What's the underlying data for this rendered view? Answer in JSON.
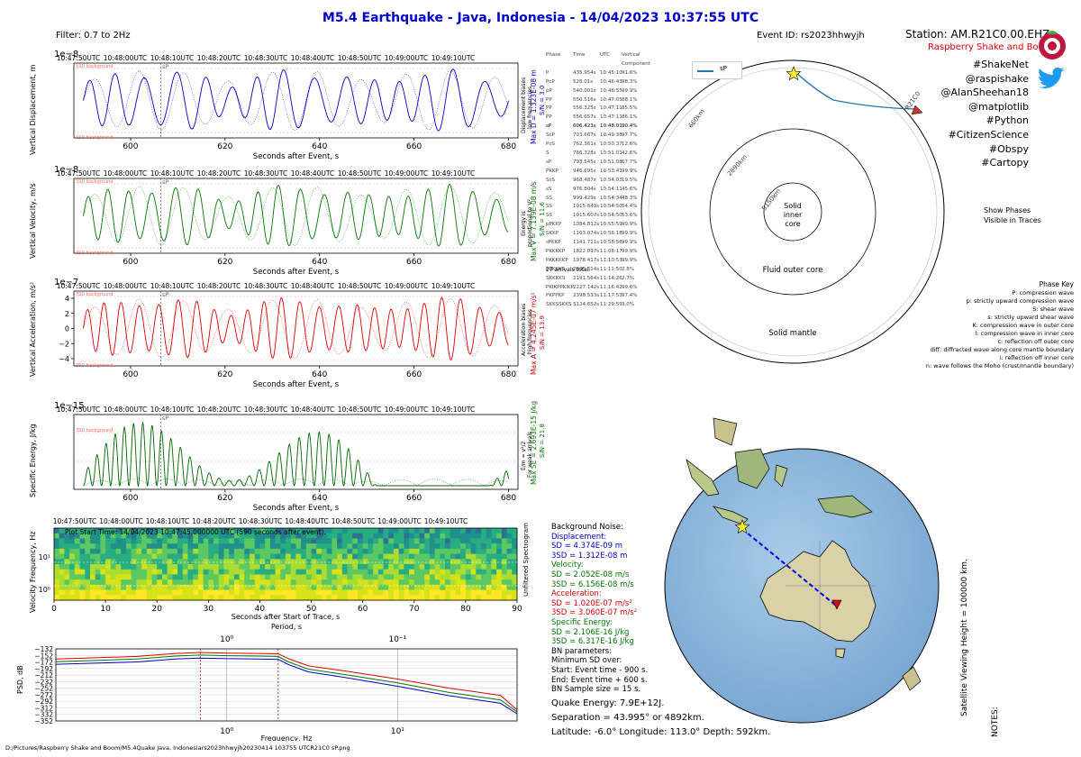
{
  "header": {
    "title": "M5.4 Earthquake - Java, Indonesia -  14/04/2023 10:37:55 UTC",
    "filter": "Filter: 0.7 to 2Hz",
    "event_id": "Event ID: rs2023hhwyjh",
    "station": "Station: AM.R21C0.00.EHZ",
    "station_sub": "Raspberry Shake and Boom"
  },
  "social": [
    "#ShakeNet",
    "@raspishake",
    "@AlanSheehan18",
    "@matplotlib",
    "#Python",
    "#CitizenScience",
    "#Obspy",
    "#Cartopy"
  ],
  "colors": {
    "title": "#0000cc",
    "disp": "#0000cc",
    "vel": "#007700",
    "acc": "#dd0000",
    "energy": "#006600",
    "sp_line": "#1f77b4",
    "noise": "#ff9999"
  },
  "time_labels": [
    "10:47:50UTC",
    "10:48:00UTC",
    "10:48:10UTC",
    "10:48:20UTC",
    "10:48:30UTC",
    "10:48:40UTC",
    "10:48:50UTC",
    "10:49:00UTC",
    "10:49:10UTC"
  ],
  "trace_axis": {
    "xlabel": "Seconds after Event, s",
    "ticks": [
      "600",
      "620",
      "640",
      "660",
      "680"
    ],
    "sp_label": "sP"
  },
  "panels": {
    "disp": {
      "exp": "1e−8",
      "ylabel": "Vertical Displacement, m",
      "right": [
        "Displacement biases",
        "low frequencies"
      ],
      "max": "Max D = 1.323E-08 m",
      "snr": "S/N = 3.0",
      "noise": "1SD background"
    },
    "vel": {
      "exp": "1e−8",
      "ylabel": "Vertical Velocity, m/s",
      "right": [
        "Energy is",
        "proportional to V²"
      ],
      "max": "Max V = 7.139E-08 m/s",
      "snr": "S/N = 11.6",
      "noise": "3SD background"
    },
    "acc": {
      "exp": "1e−7",
      "ylabel": "Vertical Acceleration, m/s²",
      "right": [
        "Acceleration biases",
        "high frequencies"
      ],
      "max": "Max A = 4.245E-07 m/s²",
      "snr": "S/N = 13.9",
      "noise": "3SD background",
      "yticks": [
        "4",
        "2",
        "0",
        "−2",
        "−4"
      ]
    },
    "energy": {
      "exp": "1e−15",
      "ylabel": "Specific Energy, J/kg",
      "right": [
        "E/m = v²/2",
        "For weak arrivals"
      ],
      "max": "Max SE = 2.693E-15 J/kg",
      "snr": "S/N = 21.8",
      "noise": "3SD background"
    }
  },
  "spectrogram": {
    "ylabel": "Velocity Frequency, Hz",
    "yticks": [
      "10¹",
      "10⁰"
    ],
    "xlabel": "Seconds after Start of Trace, s",
    "xticks": [
      "0",
      "10",
      "20",
      "30",
      "40",
      "50",
      "60",
      "70",
      "80",
      "90"
    ],
    "start_note": "Plot Start Time:  14/04/2023 10:47:45.000000 UTC (590 seconds after event).",
    "right_label": "Unfiltered Spectrogram"
  },
  "psd": {
    "ylabel": "PSD, dB",
    "xlabel": "Frequency, Hz",
    "period_label": "Period, s",
    "yticks": [
      "−132",
      "−152",
      "−172",
      "−192",
      "−212",
      "−232",
      "−252",
      "−272",
      "−292",
      "−312",
      "−332",
      "−352"
    ],
    "xticks": [
      "10⁰",
      "10¹"
    ],
    "period_ticks": [
      "10⁰",
      "10⁻¹"
    ]
  },
  "phases": {
    "header": [
      "Phase",
      "Time",
      "UTC",
      "Vertical Component"
    ],
    "rows": [
      [
        "P",
        "435.954s",
        "10:45:10",
        "91.6%"
      ],
      [
        "PcP",
        "528.01s",
        "10:46:43",
        "98.3%"
      ],
      [
        "pP",
        "540.001s",
        "10:46:55",
        "99.9%"
      ],
      [
        "PP",
        "550.516s",
        "10:47:05",
        "88.1%"
      ],
      [
        "PP",
        "556.325s",
        "10:47:11",
        "85.5%"
      ],
      [
        "PP",
        "556.657s",
        "10:47:11",
        "86.1%"
      ],
      [
        "sP",
        "606.423s",
        "10:48:01",
        "90.4%"
      ],
      [
        "ScP",
        "703.667s",
        "10:49:38",
        "97.7%"
      ],
      [
        "PcS",
        "762.361s",
        "10:50:37",
        "12.6%"
      ],
      [
        "S",
        "786.328s",
        "10:51:01",
        "42.6%"
      ],
      [
        "sP",
        "793.545s",
        "10:51:08",
        "67.7%"
      ],
      [
        "PKKP",
        "946.695s",
        "10:53:41",
        "99.9%"
      ],
      [
        "ScS",
        "968.487s",
        "10:54:03",
        "19.5%"
      ],
      [
        "sS",
        "976.804s",
        "10:54:11",
        "45.6%"
      ],
      [
        "SS",
        "999.429s",
        "10:54:34",
        "48.3%"
      ],
      [
        "SS",
        "1015.649s",
        "10:54:50",
        "54.4%"
      ],
      [
        "SS",
        "1015.607s",
        "10:54:50",
        "53.6%"
      ],
      [
        "pPKKP",
        "1084.812s",
        "10:55:59",
        "99.9%"
      ],
      [
        "SKKP",
        "1103.074s",
        "10:56:18",
        "99.9%"
      ],
      [
        "sPKKP",
        "1141.711s",
        "10:56:56",
        "99.9%"
      ],
      [
        "PKKKKP",
        "1822.097s",
        "11:08:17",
        "99.9%"
      ],
      [
        "PKKKKKP",
        "1978.417s",
        "11:10:53",
        "99.9%"
      ],
      [
        "PKKKKS",
        "2035.314s",
        "11:11:50",
        "2.8%"
      ],
      [
        "SKKKKS",
        "2191.564s",
        "11:14:26",
        "2.7%"
      ],
      [
        "PKIKPPKIKP",
        "2227.142s",
        "11:16:42",
        "99.6%"
      ],
      [
        "PKPPKP",
        "2398.533s",
        "11:17:53",
        "97.4%"
      ],
      [
        "SKKSSKKS",
        "3124.652s",
        "11:29:59",
        "3.0%"
      ]
    ],
    "total": "27 arrivals total."
  },
  "cross_section": {
    "legend": "sP",
    "station_label": "R21C0",
    "depth_labels": [
      "660km",
      "2890km",
      "5150km"
    ],
    "inner_core": [
      "Solid",
      "inner",
      "core"
    ],
    "outer_core": "Fluid outer core",
    "mantle": "Solid mantle",
    "show_phases": [
      "Show Phases",
      "Visible in Traces"
    ]
  },
  "phase_key": {
    "title": "Phase Key",
    "items": [
      "P:   compression wave",
      "p:   strictly upward compression wave",
      "S:   shear wave",
      "s:   strictly upward shear wave",
      "K:   compression wave in outer core",
      "I:   compression wave in inner core",
      "c:   reflection off outer core",
      "diff:   diffracted wave along core mantle boundary",
      "i:   reflection off inner core",
      "n:   wave follows the Moho (crust/mantle boundary)"
    ]
  },
  "background_noise": {
    "title": "Background Noise:",
    "disp_head": "Displacement:",
    "disp": [
      "SD = 4.374E-09 m",
      "3SD = 1.312E-08 m"
    ],
    "vel_head": "Velocity:",
    "vel": [
      "SD = 2.052E-08 m/s",
      "3SD = 6.156E-08 m/s"
    ],
    "acc_head": "Acceleration:",
    "acc": [
      "SD = 1.020E-07 m/s²",
      "3SD = 3.060E-07 m/s²"
    ],
    "en_head": "Specific Energy:",
    "en": [
      "SD = 2.106E-16 J/kg",
      "3SD = 6.317E-16 J/kg"
    ],
    "params": [
      "BN parameters:",
      "Minimum SD over:",
      "Start: Event time - 900 s.",
      "End: Event time + 600 s.",
      "BN Sample size = 15 s."
    ]
  },
  "quake": {
    "energy": "Quake Energy: 7.9E+12J.",
    "separation": "Separation = 43.995° or 4892km.",
    "location": "Latitude: -6.0° Longitude: 113.0° Depth: 592km."
  },
  "globe": {
    "height_label": "Satellite Viewing Height = 100000 km.",
    "notes": "NOTES:"
  },
  "footer": "D:/Pictures/Raspberry Shake and Boom/M5.4Quake Java, Indonesiars2023hhwyjh20230414 103755 UTCR21C0 sP.png",
  "chart_data": [
    {
      "type": "line",
      "title": "Vertical Displacement",
      "xlabel": "Seconds after Event, s",
      "ylabel": "Vertical Displacement, m",
      "xlim": [
        588,
        682
      ],
      "ylim": [
        -1.4e-08,
        1.4e-08
      ],
      "series": [
        {
          "name": "Displacement",
          "x": [
            590,
            606.4,
            680
          ],
          "values": [
            0,
            1.323e-08,
            0
          ]
        }
      ],
      "annotations": [
        "sP at 606.4 s"
      ]
    },
    {
      "type": "line",
      "title": "Vertical Velocity",
      "xlabel": "Seconds after Event, s",
      "ylabel": "Vertical Velocity, m/s",
      "xlim": [
        588,
        682
      ],
      "ylim": [
        -8e-08,
        8e-08
      ],
      "series": [
        {
          "name": "Velocity",
          "x": [
            590,
            606.4,
            680
          ],
          "values": [
            0,
            7.139e-08,
            0
          ]
        }
      ]
    },
    {
      "type": "line",
      "title": "Vertical Acceleration",
      "xlabel": "Seconds after Event, s",
      "ylabel": "Vertical Acceleration, m/s²",
      "xlim": [
        588,
        682
      ],
      "ylim": [
        -4.5e-07,
        4.5e-07
      ],
      "series": [
        {
          "name": "Acceleration",
          "x": [
            590,
            606.4,
            680
          ],
          "values": [
            0,
            4.245e-07,
            0
          ]
        }
      ]
    },
    {
      "type": "line",
      "title": "Specific Energy",
      "xlabel": "Seconds after Event, s",
      "ylabel": "Specific Energy, J/kg",
      "xlim": [
        588,
        682
      ],
      "ylim": [
        0,
        3e-15
      ],
      "series": [
        {
          "name": "Energy",
          "x": [
            590,
            606.4,
            680
          ],
          "values": [
            0,
            2.693e-15,
            0
          ]
        }
      ]
    },
    {
      "type": "heatmap",
      "title": "Unfiltered Spectrogram",
      "xlabel": "Seconds after Start of Trace, s",
      "ylabel": "Velocity Frequency, Hz",
      "xlim": [
        0,
        90
      ],
      "ylim_log": [
        0.5,
        25
      ]
    },
    {
      "type": "line",
      "title": "PSD",
      "xlabel": "Frequency, Hz",
      "ylabel": "PSD, dB",
      "xlim_log": [
        0.1,
        50
      ],
      "ylim": [
        -352,
        -132
      ],
      "x": [
        0.1,
        0.3,
        0.5,
        0.7,
        1.0,
        1.5,
        2.0,
        2.3,
        3,
        5,
        10,
        20,
        40,
        50
      ],
      "series": [
        {
          "name": "Displacement",
          "color": "#0000cc",
          "values": [
            -179,
            -172,
            -163,
            -160,
            -162,
            -163,
            -164,
            -180,
            -202,
            -220,
            -246,
            -275,
            -298,
            -330
          ]
        },
        {
          "name": "Velocity",
          "color": "#007700",
          "values": [
            -171,
            -163,
            -154,
            -151,
            -153,
            -154,
            -155,
            -172,
            -194,
            -211,
            -236,
            -265,
            -288,
            -324
          ]
        },
        {
          "name": "Acceleration",
          "color": "#dd0000",
          "values": [
            -163,
            -155,
            -146,
            -143,
            -145,
            -146,
            -147,
            -162,
            -184,
            -200,
            -224,
            -252,
            -274,
            -318
          ]
        }
      ],
      "vlines": [
        0.7,
        2.0
      ]
    }
  ]
}
